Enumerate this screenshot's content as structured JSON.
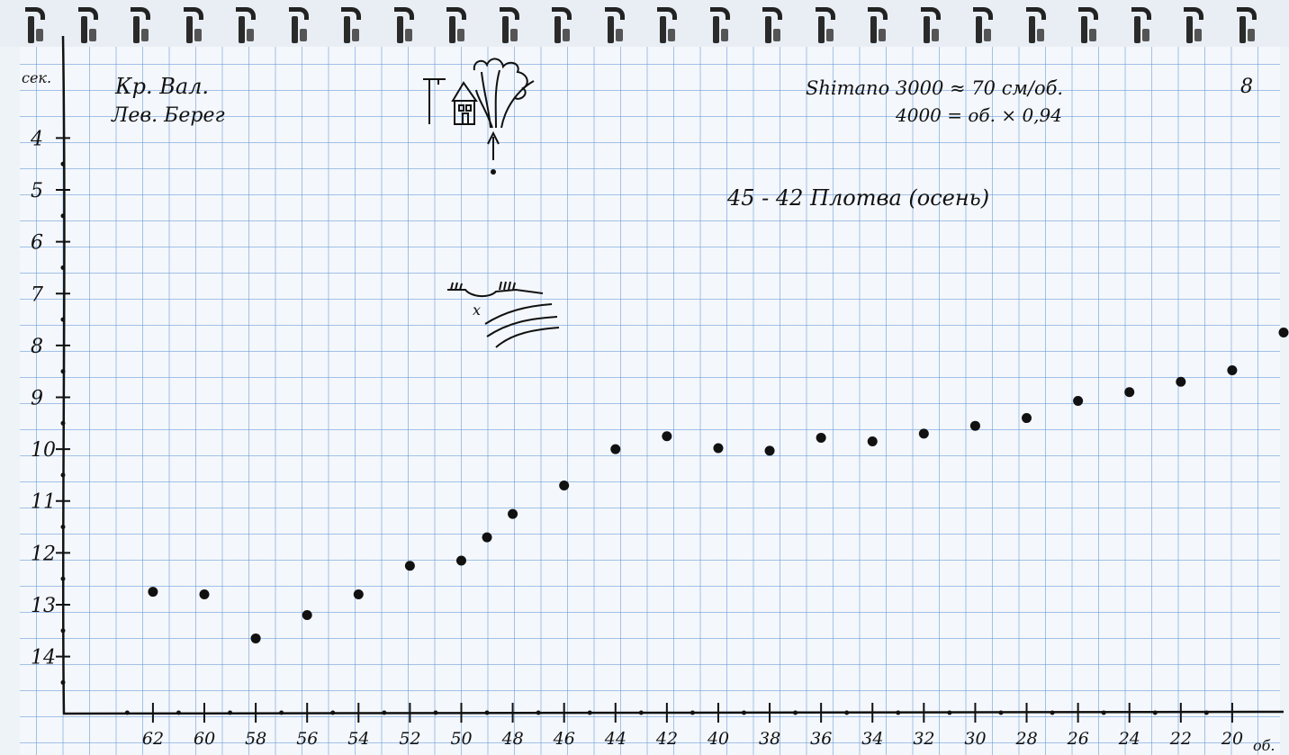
{
  "page_number": "8",
  "location": {
    "line1": "Кр. Вал.",
    "line2": "Лев. Берег"
  },
  "reel_notes": {
    "line1": "Shimano 3000 ≈ 70 см/об.",
    "line2": "4000 = об. × 0,94"
  },
  "annotation": "45 - 42 Плотва (осень)",
  "sketch_marker": "x",
  "icons": {
    "spiral": "spiral-binding-ring",
    "house_sketch": "house-with-trees-icon",
    "shore_sketch": "shoreline-sketch-icon"
  },
  "colors": {
    "grid": "#5f96d7",
    "ink": "#111111"
  },
  "chart_data": {
    "type": "scatter",
    "xlabel": "об.",
    "ylabel": "сек.",
    "x_ticks": [
      "62",
      "60",
      "58",
      "56",
      "54",
      "52",
      "50",
      "48",
      "46",
      "44",
      "42",
      "40",
      "38",
      "36",
      "34",
      "32",
      "30",
      "28",
      "26",
      "24",
      "22",
      "20"
    ],
    "y_ticks": [
      "4",
      "5",
      "6",
      "7",
      "8",
      "9",
      "10",
      "11",
      "12",
      "13",
      "14"
    ],
    "x_reversed": true,
    "xlim": [
      65.5,
      18
    ],
    "ylim": [
      15.1,
      2.9
    ],
    "grid": true,
    "points": [
      {
        "x": 62,
        "y": 12.75
      },
      {
        "x": 60,
        "y": 12.8
      },
      {
        "x": 58,
        "y": 13.65
      },
      {
        "x": 56,
        "y": 13.2
      },
      {
        "x": 54,
        "y": 12.8
      },
      {
        "x": 52,
        "y": 12.25
      },
      {
        "x": 50,
        "y": 12.15
      },
      {
        "x": 49,
        "y": 11.7
      },
      {
        "x": 48,
        "y": 11.25
      },
      {
        "x": 46,
        "y": 10.7
      },
      {
        "x": 44,
        "y": 10.0
      },
      {
        "x": 42,
        "y": 9.75
      },
      {
        "x": 40,
        "y": 9.98
      },
      {
        "x": 38,
        "y": 10.03
      },
      {
        "x": 36,
        "y": 9.78
      },
      {
        "x": 34,
        "y": 9.85
      },
      {
        "x": 32,
        "y": 9.7
      },
      {
        "x": 30,
        "y": 9.55
      },
      {
        "x": 28,
        "y": 9.4
      },
      {
        "x": 26,
        "y": 9.07
      },
      {
        "x": 24,
        "y": 8.9
      },
      {
        "x": 22,
        "y": 8.7
      },
      {
        "x": 20,
        "y": 8.48
      },
      {
        "x": 18,
        "y": 7.75
      }
    ]
  }
}
